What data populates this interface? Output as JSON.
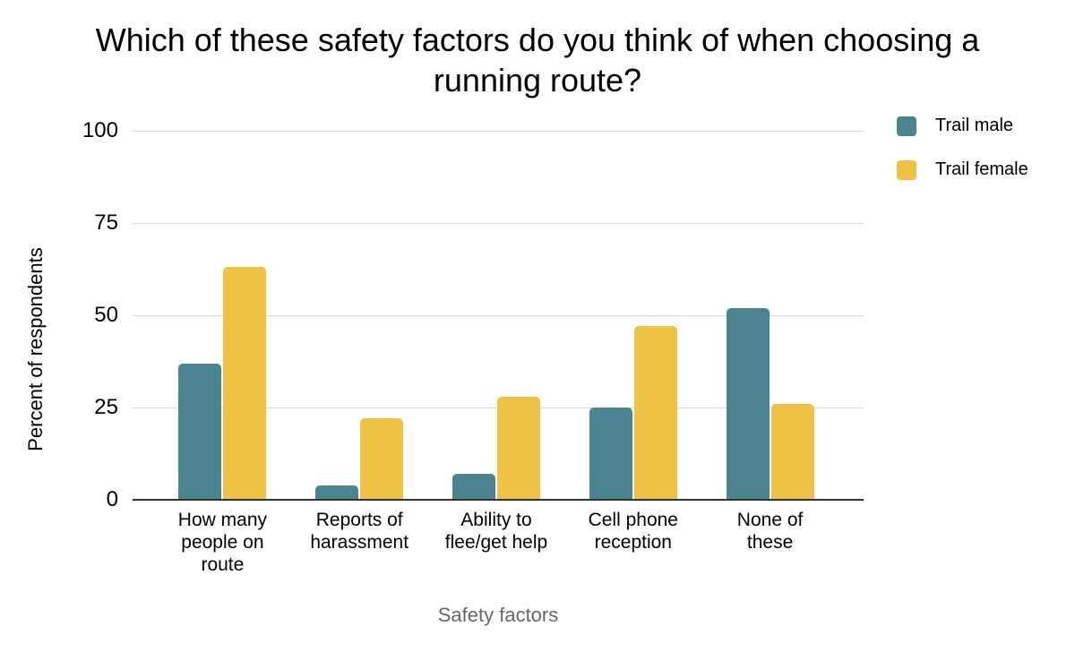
{
  "chart_data": {
    "type": "bar",
    "title": "Which of these safety factors do you think of when choosing a running route?",
    "xlabel": "Safety factors",
    "ylabel": "Percent of respondents",
    "categories": [
      "How many\npeople on\nroute",
      "Reports of\nharassment",
      "Ability to\nflee/get help",
      "Cell phone\nreception",
      "None of\nthese"
    ],
    "series": [
      {
        "name": "Trail male",
        "color": "#4b8490",
        "values": [
          37,
          4,
          7,
          25,
          52
        ]
      },
      {
        "name": "Trail female",
        "color": "#eec244",
        "values": [
          63,
          22,
          28,
          47,
          26
        ]
      }
    ],
    "yticks": [
      0,
      25,
      50,
      75,
      100
    ],
    "ylim": [
      0,
      100
    ],
    "grid": true,
    "legend_position": "top-right",
    "colors": {
      "gridline": "#d9d9d9",
      "axis_line": "#333333",
      "x_title_text": "#666666",
      "text": "#000000",
      "background": "#ffffff"
    }
  }
}
